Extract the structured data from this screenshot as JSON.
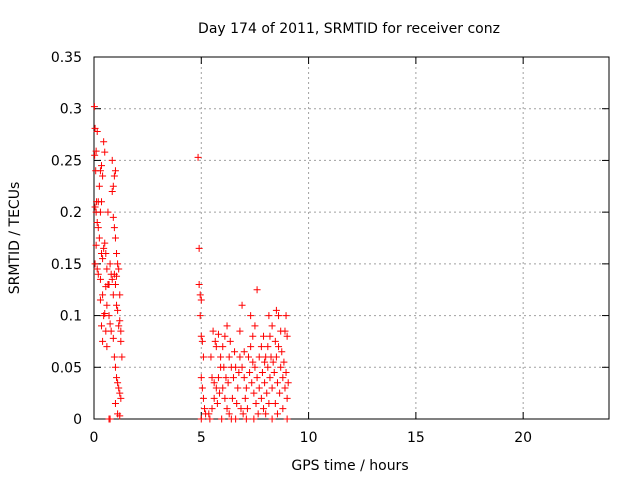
{
  "chart_data": {
    "type": "scatter",
    "title": "Day 174 of 2011, SRMTID for receiver conz",
    "xlabel": "GPS time / hours",
    "ylabel": "SRMTID / TECUs",
    "xlim": [
      0,
      24
    ],
    "ylim": [
      0,
      0.35
    ],
    "xticks": [
      0,
      5,
      10,
      15,
      20
    ],
    "yticks": [
      0,
      0.05,
      0.1,
      0.15,
      0.2,
      0.25,
      0.3,
      0.35
    ],
    "grid": true,
    "marker": "plus",
    "color": "#ff0000",
    "points": [
      [
        0.02,
        0.302
      ],
      [
        0.05,
        0.281
      ],
      [
        0.1,
        0.259
      ],
      [
        0.15,
        0.278
      ],
      [
        0.03,
        0.255
      ],
      [
        0.08,
        0.24
      ],
      [
        0.12,
        0.21
      ],
      [
        0.05,
        0.205
      ],
      [
        0.1,
        0.2
      ],
      [
        0.15,
        0.19
      ],
      [
        0.2,
        0.185
      ],
      [
        0.25,
        0.175
      ],
      [
        0.1,
        0.168
      ],
      [
        0.05,
        0.15
      ],
      [
        0.15,
        0.145
      ],
      [
        0.2,
        0.14
      ],
      [
        0.3,
        0.135
      ],
      [
        0.35,
        0.16
      ],
      [
        0.4,
        0.155
      ],
      [
        0.45,
        0.165
      ],
      [
        0.5,
        0.17
      ],
      [
        0.3,
        0.24
      ],
      [
        0.35,
        0.245
      ],
      [
        0.4,
        0.235
      ],
      [
        0.45,
        0.268
      ],
      [
        0.5,
        0.258
      ],
      [
        0.3,
        0.2
      ],
      [
        0.35,
        0.21
      ],
      [
        0.25,
        0.225
      ],
      [
        0.2,
        0.21
      ],
      [
        0.55,
        0.16
      ],
      [
        0.6,
        0.145
      ],
      [
        0.4,
        0.12
      ],
      [
        0.45,
        0.1
      ],
      [
        0.5,
        0.102
      ],
      [
        0.55,
        0.085
      ],
      [
        0.6,
        0.07
      ],
      [
        0.4,
        0.075
      ],
      [
        0.35,
        0.09
      ],
      [
        0.3,
        0.115
      ],
      [
        0.7,
        0.13
      ],
      [
        0.75,
        0.15
      ],
      [
        0.8,
        0.14
      ],
      [
        0.85,
        0.135
      ],
      [
        0.9,
        0.12
      ],
      [
        0.7,
        0.1
      ],
      [
        0.75,
        0.092
      ],
      [
        0.8,
        0.085
      ],
      [
        0.85,
        0.22
      ],
      [
        0.9,
        0.225
      ],
      [
        0.95,
        0.235
      ],
      [
        1.0,
        0.24
      ],
      [
        0.85,
        0.25
      ],
      [
        0.9,
        0.195
      ],
      [
        0.95,
        0.185
      ],
      [
        1.0,
        0.175
      ],
      [
        1.05,
        0.16
      ],
      [
        1.1,
        0.15
      ],
      [
        1.15,
        0.145
      ],
      [
        1.0,
        0.13
      ],
      [
        1.05,
        0.11
      ],
      [
        1.1,
        0.105
      ],
      [
        1.15,
        0.09
      ],
      [
        1.2,
        0.095
      ],
      [
        0.95,
        0.06
      ],
      [
        1.0,
        0.05
      ],
      [
        1.05,
        0.04
      ],
      [
        1.1,
        0.035
      ],
      [
        1.15,
        0.03
      ],
      [
        1.2,
        0.025
      ],
      [
        1.25,
        0.02
      ],
      [
        1.0,
        0.015
      ],
      [
        1.1,
        0.005
      ],
      [
        1.2,
        0.003
      ],
      [
        0.7,
        0.0
      ],
      [
        0.75,
        0.0
      ],
      [
        0.9,
        0.078
      ],
      [
        1.25,
        0.075
      ],
      [
        1.3,
        0.06
      ],
      [
        1.2,
        0.12
      ],
      [
        1.25,
        0.085
      ],
      [
        0.55,
        0.128
      ],
      [
        0.65,
        0.13
      ],
      [
        0.6,
        0.11
      ],
      [
        0.95,
        0.14
      ],
      [
        1.05,
        0.138
      ],
      [
        0.65,
        0.2
      ],
      [
        4.85,
        0.253
      ],
      [
        4.9,
        0.165
      ],
      [
        4.9,
        0.13
      ],
      [
        4.95,
        0.12
      ],
      [
        5.0,
        0.115
      ],
      [
        4.95,
        0.1
      ],
      [
        5.0,
        0.08
      ],
      [
        5.05,
        0.075
      ],
      [
        5.1,
        0.06
      ],
      [
        5.0,
        0.04
      ],
      [
        5.05,
        0.03
      ],
      [
        5.1,
        0.02
      ],
      [
        5.15,
        0.01
      ],
      [
        5.2,
        0.005
      ],
      [
        5.0,
        0.0
      ],
      [
        5.4,
        0.0
      ],
      [
        5.5,
        0.01
      ],
      [
        5.6,
        0.02
      ],
      [
        5.7,
        0.03
      ],
      [
        5.8,
        0.04
      ],
      [
        5.9,
        0.05
      ],
      [
        5.5,
        0.04
      ],
      [
        5.6,
        0.035
      ],
      [
        5.7,
        0.07
      ],
      [
        5.8,
        0.082
      ],
      [
        5.9,
        0.06
      ],
      [
        6.0,
        0.07
      ],
      [
        6.1,
        0.08
      ],
      [
        6.2,
        0.09
      ],
      [
        6.3,
        0.06
      ],
      [
        6.4,
        0.05
      ],
      [
        6.0,
        0.03
      ],
      [
        6.1,
        0.02
      ],
      [
        6.2,
        0.01
      ],
      [
        6.3,
        0.005
      ],
      [
        6.4,
        0.0
      ],
      [
        6.5,
        0.04
      ],
      [
        6.6,
        0.05
      ],
      [
        6.7,
        0.03
      ],
      [
        6.8,
        0.06
      ],
      [
        6.9,
        0.05
      ],
      [
        7.0,
        0.04
      ],
      [
        7.1,
        0.03
      ],
      [
        7.2,
        0.06
      ],
      [
        7.3,
        0.07
      ],
      [
        7.4,
        0.08
      ],
      [
        7.5,
        0.09
      ],
      [
        6.9,
        0.11
      ],
      [
        7.3,
        0.1
      ],
      [
        7.6,
        0.125
      ],
      [
        7.5,
        0.05
      ],
      [
        7.6,
        0.04
      ],
      [
        7.7,
        0.03
      ],
      [
        7.8,
        0.02
      ],
      [
        7.9,
        0.01
      ],
      [
        8.0,
        0.005
      ],
      [
        7.7,
        0.06
      ],
      [
        7.8,
        0.07
      ],
      [
        7.9,
        0.08
      ],
      [
        8.0,
        0.06
      ],
      [
        8.1,
        0.05
      ],
      [
        8.2,
        0.04
      ],
      [
        8.3,
        0.03
      ],
      [
        8.4,
        0.045
      ],
      [
        8.5,
        0.06
      ],
      [
        8.6,
        0.07
      ],
      [
        8.7,
        0.05
      ],
      [
        8.8,
        0.04
      ],
      [
        8.9,
        0.03
      ],
      [
        9.0,
        0.02
      ],
      [
        8.8,
        0.01
      ],
      [
        8.6,
        0.1
      ],
      [
        8.5,
        0.105
      ],
      [
        8.9,
        0.085
      ],
      [
        9.0,
        0.08
      ],
      [
        8.95,
        0.1
      ],
      [
        8.2,
        0.08
      ],
      [
        8.3,
        0.09
      ],
      [
        8.1,
        0.07
      ],
      [
        5.55,
        0.085
      ],
      [
        5.65,
        0.075
      ],
      [
        6.05,
        0.05
      ],
      [
        6.55,
        0.065
      ],
      [
        6.75,
        0.045
      ],
      [
        7.05,
        0.02
      ],
      [
        7.15,
        0.01
      ],
      [
        7.35,
        0.035
      ],
      [
        7.45,
        0.025
      ],
      [
        5.75,
        0.015
      ],
      [
        5.85,
        0.025
      ],
      [
        6.15,
        0.04
      ],
      [
        6.25,
        0.035
      ],
      [
        6.45,
        0.02
      ],
      [
        6.65,
        0.015
      ],
      [
        6.85,
        0.01
      ],
      [
        6.95,
        0.005
      ],
      [
        7.25,
        0.045
      ],
      [
        7.55,
        0.015
      ],
      [
        7.65,
        0.005
      ],
      [
        7.85,
        0.045
      ],
      [
        7.95,
        0.035
      ],
      [
        8.05,
        0.025
      ],
      [
        8.15,
        0.015
      ],
      [
        8.25,
        0.06
      ],
      [
        8.35,
        0.055
      ],
      [
        8.45,
        0.075
      ],
      [
        8.55,
        0.035
      ],
      [
        8.65,
        0.025
      ],
      [
        8.75,
        0.065
      ],
      [
        8.85,
        0.055
      ],
      [
        8.95,
        0.045
      ],
      [
        9.05,
        0.035
      ],
      [
        8.45,
        0.015
      ],
      [
        8.55,
        0.005
      ],
      [
        5.45,
        0.06
      ],
      [
        5.35,
        0.005
      ],
      [
        6.35,
        0.075
      ],
      [
        6.8,
        0.085
      ],
      [
        7.0,
        0.065
      ],
      [
        7.4,
        0.055
      ],
      [
        7.95,
        0.055
      ],
      [
        8.7,
        0.085
      ],
      [
        8.15,
        0.1
      ],
      [
        6.6,
        0.0
      ],
      [
        7.1,
        0.0
      ],
      [
        5.95,
        0.0
      ],
      [
        9.0,
        0.0
      ],
      [
        8.3,
        0.0
      ],
      [
        7.45,
        0.0
      ]
    ]
  }
}
